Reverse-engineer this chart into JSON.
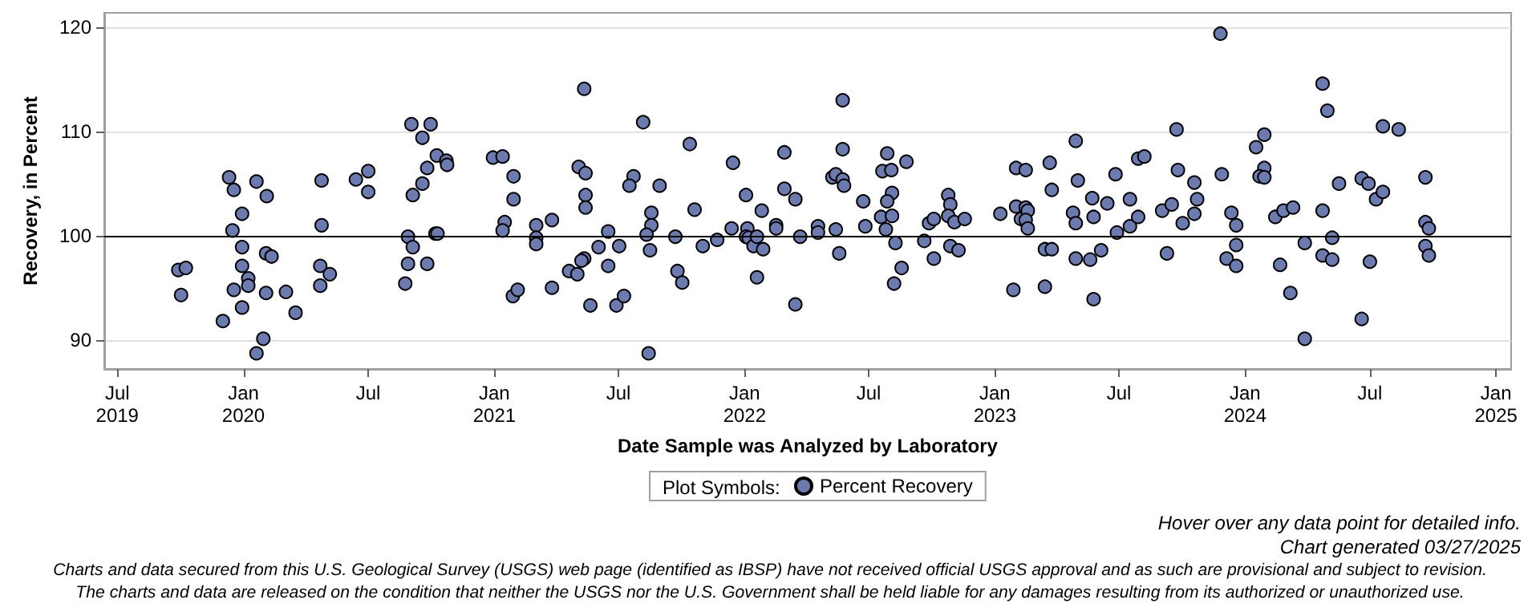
{
  "chart_data": {
    "type": "scatter",
    "xlabel": "Date Sample was Analyzed by Laboratory",
    "ylabel": "Recovery, in Percent",
    "legend_title": "Plot Symbols:",
    "annotations": [
      "Hover over any data point for detailed info.",
      "Chart generated 03/27/2025",
      "Charts and data secured from this U.S. Geological Survey (USGS) web page (identified as IBSP) have not received official USGS approval and as such are provisional and subject to revision.",
      "The charts and data are released on the condition that neither the USGS nor the U.S. Government shall be held liable for any damages resulting from its authorized or unauthorized use."
    ],
    "series": [
      {
        "name": "Percent Recovery",
        "color": "#6b7bb0",
        "x": [
          "2019-09-28",
          "2019-10-09",
          "2019-10-02",
          "2019-12-02",
          "2019-12-11",
          "2019-12-18",
          "2019-12-30",
          "2019-12-16",
          "2019-12-30",
          "2019-12-30",
          "2019-12-18",
          "2019-12-30",
          "2020-01-08",
          "2020-01-08",
          "2020-01-20",
          "2020-02-04",
          "2020-02-03",
          "2020-02-11",
          "2020-02-03",
          "2020-01-30",
          "2020-01-20",
          "2020-03-03",
          "2020-03-17",
          "2020-04-24",
          "2020-04-24",
          "2020-04-22",
          "2020-05-06",
          "2020-04-22",
          "2020-06-13",
          "2020-07-01",
          "2020-07-01",
          "2020-09-02",
          "2020-09-30",
          "2020-09-18",
          "2020-10-09",
          "2020-10-23",
          "2020-10-24",
          "2020-09-25",
          "2020-09-18",
          "2020-09-04",
          "2020-08-28",
          "2020-09-04",
          "2020-08-28",
          "2020-09-25",
          "2020-08-24",
          "2020-10-07",
          "2020-10-10",
          "2020-12-30",
          "2021-01-13",
          "2021-01-29",
          "2021-01-29",
          "2021-01-16",
          "2021-01-13",
          "2021-01-28",
          "2021-02-04",
          "2021-03-03",
          "2021-03-03",
          "2021-03-03",
          "2021-03-26",
          "2021-03-26",
          "2021-05-12",
          "2021-05-04",
          "2021-05-14",
          "2021-05-14",
          "2021-05-14",
          "2021-05-12",
          "2021-05-08",
          "2021-04-20",
          "2021-05-02",
          "2021-05-21",
          "2021-06-02",
          "2021-06-16",
          "2021-06-16",
          "2021-07-02",
          "2021-06-28",
          "2021-07-09",
          "2021-08-06",
          "2021-07-23",
          "2021-07-17",
          "2021-08-30",
          "2021-08-18",
          "2021-08-18",
          "2021-08-11",
          "2021-08-16",
          "2021-08-14",
          "2021-10-13",
          "2021-10-20",
          "2021-09-22",
          "2021-11-01",
          "2021-09-25",
          "2021-10-02",
          "2021-11-22",
          "2021-12-15",
          "2021-12-13",
          "2022-01-03",
          "2022-01-05",
          "2022-01-03",
          "2022-01-07",
          "2022-01-14",
          "2022-01-19",
          "2022-01-26",
          "2022-01-28",
          "2022-01-19",
          "2022-02-16",
          "2022-02-16",
          "2022-02-28",
          "2022-02-28",
          "2022-03-16",
          "2022-03-23",
          "2022-03-16",
          "2022-04-18",
          "2022-04-18",
          "2022-05-14",
          "2022-05-19",
          "2022-05-24",
          "2022-05-24",
          "2022-05-09",
          "2022-05-14",
          "2022-05-24",
          "2022-05-26",
          "2022-06-23",
          "2022-06-26",
          "2022-07-19",
          "2022-07-26",
          "2022-07-21",
          "2022-07-28",
          "2022-08-03",
          "2022-08-04",
          "2022-07-28",
          "2022-08-04",
          "2022-08-09",
          "2022-08-18",
          "2022-08-07",
          "2022-08-25",
          "2022-09-20",
          "2022-09-27",
          "2022-10-04",
          "2022-10-04",
          "2022-10-25",
          "2022-10-28",
          "2022-10-25",
          "2022-11-03",
          "2022-11-18",
          "2022-10-28",
          "2022-11-09",
          "2023-01-09",
          "2023-02-01",
          "2023-02-15",
          "2023-02-01",
          "2023-02-08",
          "2023-02-15",
          "2023-02-18",
          "2023-02-15",
          "2023-02-18",
          "2023-01-28",
          "2023-03-22",
          "2023-03-25",
          "2023-03-15",
          "2023-03-25",
          "2023-03-15",
          "2023-04-29",
          "2023-05-02",
          "2023-04-25",
          "2023-04-29",
          "2023-04-29",
          "2023-05-23",
          "2023-05-25",
          "2023-05-20",
          "2023-06-05",
          "2023-05-25",
          "2023-06-14",
          "2023-06-26",
          "2023-06-28",
          "2023-07-17",
          "2023-07-17",
          "2023-07-29",
          "2023-07-29",
          "2023-08-07",
          "2023-09-02",
          "2023-09-09",
          "2023-09-16",
          "2023-09-23",
          "2023-09-25",
          "2023-10-02",
          "2023-10-19",
          "2023-10-19",
          "2023-10-23",
          "2023-11-26",
          "2023-11-28",
          "2023-12-12",
          "2023-12-19",
          "2023-12-19",
          "2023-12-05",
          "2023-12-19",
          "2024-01-17",
          "2024-01-29",
          "2024-01-29",
          "2024-01-22",
          "2024-01-29",
          "2024-02-14",
          "2024-02-26",
          "2024-03-11",
          "2024-02-21",
          "2024-03-07",
          "2024-03-28",
          "2024-03-28",
          "2024-04-23",
          "2024-04-30",
          "2024-04-23",
          "2024-04-23",
          "2024-05-07",
          "2024-05-07",
          "2024-05-17",
          "2024-06-19",
          "2024-06-29",
          "2024-07-10",
          "2024-07-20",
          "2024-07-20",
          "2024-08-12",
          "2024-06-19",
          "2024-07-01",
          "2024-09-20",
          "2024-09-20",
          "2024-09-25",
          "2024-09-20",
          "2024-09-25"
        ],
        "values": [
          96.7,
          96.9,
          94.3,
          91.8,
          105.6,
          104.4,
          102.1,
          100.5,
          98.9,
          97.1,
          94.8,
          93.1,
          95.9,
          95.2,
          105.2,
          103.8,
          98.3,
          98.0,
          94.5,
          90.1,
          88.7,
          94.6,
          92.6,
          105.3,
          101.0,
          97.1,
          96.3,
          95.2,
          105.4,
          106.2,
          104.2,
          110.7,
          110.7,
          109.4,
          107.7,
          107.2,
          106.8,
          106.5,
          105.0,
          103.9,
          99.9,
          98.9,
          97.3,
          97.3,
          95.4,
          100.2,
          100.2,
          107.5,
          107.6,
          105.7,
          103.5,
          101.3,
          100.5,
          94.2,
          94.8,
          101.0,
          99.8,
          99.2,
          101.5,
          95.0,
          114.1,
          106.6,
          106.0,
          103.9,
          102.7,
          97.8,
          97.6,
          96.6,
          96.3,
          93.3,
          98.9,
          100.4,
          97.1,
          99.0,
          93.3,
          94.2,
          110.9,
          105.7,
          104.8,
          104.8,
          102.2,
          101.0,
          100.1,
          98.6,
          88.7,
          108.8,
          102.5,
          99.9,
          99.0,
          96.6,
          95.5,
          99.6,
          107.0,
          100.7,
          103.9,
          100.7,
          99.9,
          99.8,
          99.0,
          99.9,
          102.4,
          98.7,
          96.0,
          101.0,
          100.7,
          108.0,
          104.5,
          103.5,
          99.9,
          93.4,
          100.9,
          100.3,
          100.6,
          98.3,
          113.0,
          108.3,
          105.6,
          105.9,
          105.4,
          104.8,
          103.3,
          100.9,
          101.8,
          100.6,
          106.2,
          107.9,
          106.3,
          104.1,
          103.3,
          101.9,
          99.3,
          96.9,
          95.4,
          107.1,
          99.5,
          101.2,
          101.6,
          97.8,
          103.9,
          103.0,
          101.9,
          101.3,
          101.6,
          99.0,
          98.6,
          102.1,
          106.5,
          106.3,
          102.8,
          101.6,
          102.7,
          102.4,
          101.5,
          100.7,
          94.8,
          107.0,
          104.4,
          98.7,
          98.7,
          95.1,
          109.1,
          105.3,
          102.2,
          101.2,
          97.8,
          103.6,
          101.8,
          97.7,
          98.6,
          93.9,
          103.1,
          105.9,
          100.3,
          103.5,
          100.9,
          101.8,
          107.4,
          107.6,
          102.4,
          98.3,
          103.0,
          110.2,
          106.3,
          101.2,
          105.1,
          102.1,
          103.5,
          119.4,
          105.9,
          102.2,
          101.0,
          99.1,
          97.8,
          97.1,
          108.5,
          109.7,
          106.5,
          105.7,
          105.6,
          101.8,
          102.4,
          102.7,
          97.2,
          94.5,
          99.3,
          90.1,
          114.6,
          112.0,
          102.4,
          98.1,
          99.8,
          97.7,
          105.0,
          105.5,
          105.0,
          103.5,
          104.2,
          110.5,
          110.2,
          92.0,
          97.5,
          105.6,
          101.3,
          100.7,
          99.0,
          98.1
        ]
      }
    ],
    "xlim": [
      "2019-06-12",
      "2025-01-23"
    ],
    "xticks": [
      {
        "value": "2019-07",
        "label": "Jul\n2019"
      },
      {
        "value": "2020-01",
        "label": "Jan\n2020"
      },
      {
        "value": "2020-07",
        "label": "Jul"
      },
      {
        "value": "2021-01",
        "label": "Jan\n2021"
      },
      {
        "value": "2021-07",
        "label": "Jul"
      },
      {
        "value": "2022-01",
        "label": "Jan\n2022"
      },
      {
        "value": "2022-07",
        "label": "Jul"
      },
      {
        "value": "2023-01",
        "label": "Jan\n2023"
      },
      {
        "value": "2023-07",
        "label": "Jul"
      },
      {
        "value": "2024-01",
        "label": "Jan\n2024"
      },
      {
        "value": "2024-07",
        "label": "Jul"
      },
      {
        "value": "2025-01",
        "label": "Jan\n2025"
      }
    ],
    "ylim": [
      87.2,
      121.4
    ],
    "yticks": [
      90,
      100,
      110,
      120
    ],
    "ref_lines": [
      {
        "axis": "y",
        "value": 100,
        "color": "#000000"
      }
    ],
    "grid": "y",
    "legend": "bottom",
    "marker": "circle"
  }
}
